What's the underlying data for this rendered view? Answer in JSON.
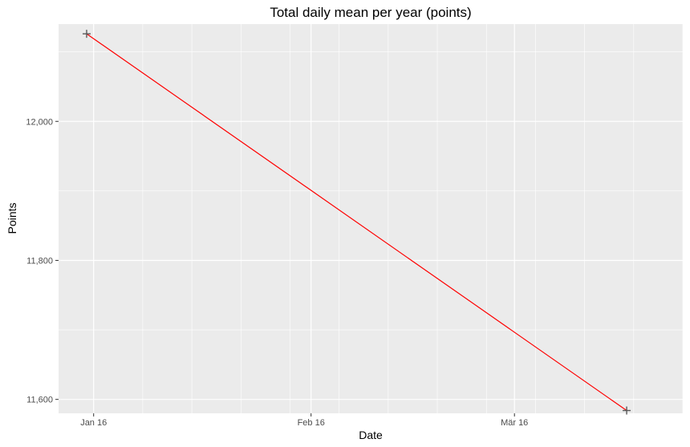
{
  "chart_data": {
    "type": "line",
    "title": "Total daily mean per year (points)",
    "xlabel": "Date",
    "ylabel": "Points",
    "x_ticks": [
      {
        "date": "2016-01-16",
        "label": "Jan 16"
      },
      {
        "date": "2016-02-16",
        "label": "Feb 16"
      },
      {
        "date": "2016-03-16",
        "label": "Mär 16"
      }
    ],
    "y_ticks": [
      {
        "value": 11600,
        "label": "11,600"
      },
      {
        "value": 11800,
        "label": "11,800"
      },
      {
        "value": 12000,
        "label": "12,000"
      }
    ],
    "xlim": [
      "2016-01-11",
      "2016-04-09"
    ],
    "ylim": [
      11580,
      12140
    ],
    "grid": true,
    "series": [
      {
        "points": [
          {
            "x": "2016-01-15",
            "y": 12126
          },
          {
            "x": "2016-04-01",
            "y": 11584
          }
        ],
        "line_color": "#ff0000",
        "marker": "plus",
        "marker_color": "#595959"
      }
    ],
    "panel_background": "#ebebeb",
    "grid_color": "#ffffff"
  }
}
